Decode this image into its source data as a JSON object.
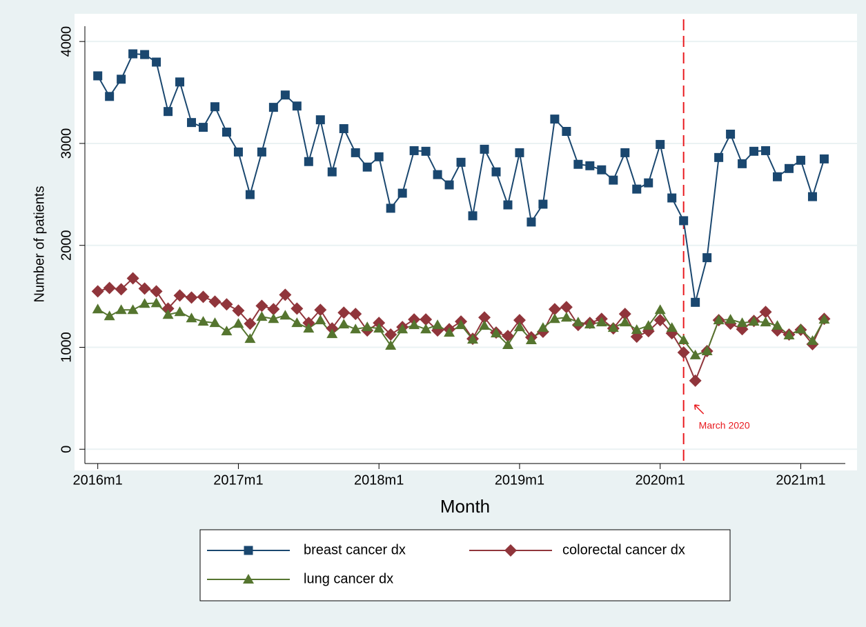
{
  "chart_data": {
    "type": "line",
    "x_label": "Month",
    "y_label": "Number of patients",
    "x": [
      672,
      673,
      674,
      675,
      676,
      677,
      678,
      679,
      680,
      681,
      682,
      683,
      684,
      685,
      686,
      687,
      688,
      689,
      690,
      691,
      692,
      693,
      694,
      695,
      696,
      697,
      698,
      699,
      700,
      701,
      702,
      703,
      704,
      705,
      706,
      707,
      708,
      709,
      710,
      711,
      712,
      713,
      714,
      715,
      716,
      717,
      718,
      719,
      720,
      721,
      722,
      723,
      724,
      725,
      726,
      727,
      728,
      729,
      730,
      731,
      732,
      733,
      734
    ],
    "xlim": [
      670.9,
      735.8
    ],
    "xticks": [
      {
        "value": 672,
        "label": "2016m1"
      },
      {
        "value": 684,
        "label": "2017m1"
      },
      {
        "value": 696,
        "label": "2018m1"
      },
      {
        "value": 708,
        "label": "2019m1"
      },
      {
        "value": 720,
        "label": "2020m1"
      },
      {
        "value": 732,
        "label": "2021m1"
      }
    ],
    "ylim": [
      -120,
      4150
    ],
    "yticks": [
      0,
      1000,
      2000,
      3000,
      4000
    ],
    "grid": true,
    "series": [
      {
        "name": "breast cancer dx",
        "color": "#1a476f",
        "marker": "square",
        "values": [
          3663,
          3461,
          3630,
          3879,
          3872,
          3798,
          3313,
          3603,
          3205,
          3158,
          3360,
          3111,
          2916,
          2498,
          2916,
          3354,
          3475,
          3367,
          2822,
          3232,
          2721,
          3145,
          2909,
          2768,
          2869,
          2364,
          2512,
          2929,
          2923,
          2694,
          2593,
          2815,
          2290,
          2943,
          2721,
          2397,
          2909,
          2229,
          2404,
          3239,
          3118,
          2795,
          2781,
          2741,
          2640,
          2909,
          2552,
          2613,
          2990,
          2465,
          2242,
          1441,
          1879,
          2862,
          3091,
          2801,
          2923,
          2929,
          2673,
          2754,
          2835,
          2478,
          2848
        ]
      },
      {
        "name": "colorectal cancer dx",
        "color": "#90353b",
        "marker": "diamond",
        "values": [
          1549,
          1582,
          1569,
          1677,
          1576,
          1549,
          1380,
          1508,
          1488,
          1495,
          1448,
          1421,
          1360,
          1232,
          1407,
          1374,
          1515,
          1380,
          1239,
          1367,
          1185,
          1340,
          1327,
          1165,
          1239,
          1125,
          1199,
          1273,
          1273,
          1165,
          1178,
          1253,
          1084,
          1293,
          1145,
          1111,
          1266,
          1098,
          1152,
          1374,
          1394,
          1219,
          1239,
          1279,
          1185,
          1327,
          1104,
          1158,
          1266,
          1138,
          949,
          673,
          963,
          1266,
          1232,
          1178,
          1259,
          1347,
          1165,
          1125,
          1172,
          1030,
          1279
        ]
      },
      {
        "name": "lung cancer dx",
        "color": "#55752f",
        "marker": "triangle",
        "values": [
          1374,
          1306,
          1367,
          1367,
          1428,
          1434,
          1320,
          1347,
          1286,
          1253,
          1239,
          1158,
          1232,
          1084,
          1300,
          1279,
          1313,
          1239,
          1185,
          1266,
          1131,
          1226,
          1178,
          1199,
          1185,
          1017,
          1178,
          1219,
          1178,
          1219,
          1145,
          1219,
          1077,
          1212,
          1138,
          1024,
          1199,
          1071,
          1192,
          1279,
          1293,
          1246,
          1226,
          1246,
          1192,
          1246,
          1172,
          1212,
          1367,
          1192,
          1071,
          923,
          963,
          1266,
          1273,
          1239,
          1253,
          1246,
          1212,
          1118,
          1178,
          1064,
          1273
        ]
      }
    ],
    "annotations": [
      {
        "text": "March 2020",
        "x": 722,
        "color": "#e8191e"
      }
    ]
  }
}
